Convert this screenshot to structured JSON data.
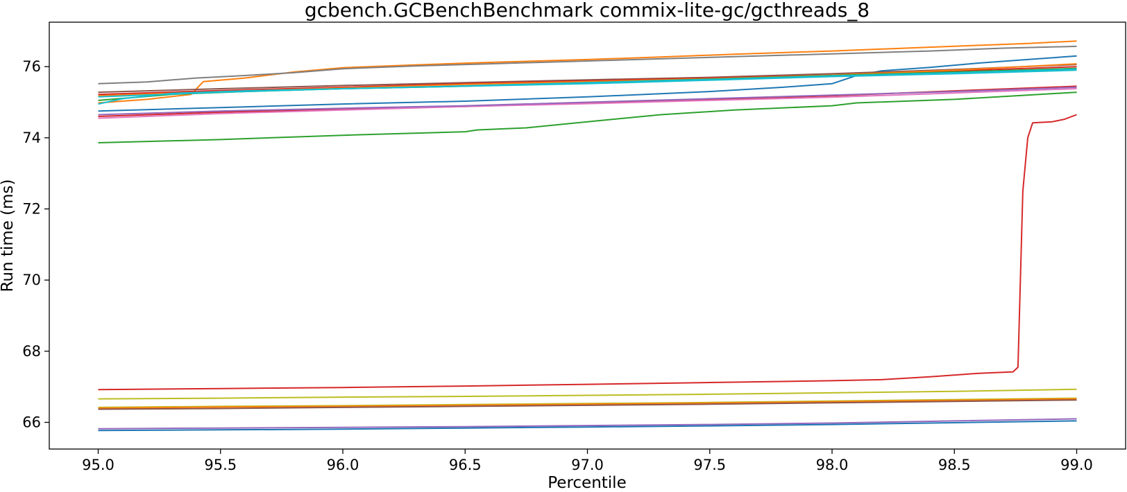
{
  "chart_data": {
    "type": "line",
    "title": "gcbench.GCBenchBenchmark commix-lite-gc/gcthreads_8",
    "xlabel": "Percentile",
    "ylabel": "Run time (ms)",
    "xlim": [
      94.8,
      99.2
    ],
    "ylim": [
      65.25,
      77.25
    ],
    "xticks": [
      95.0,
      95.5,
      96.0,
      96.5,
      97.0,
      97.5,
      98.0,
      98.5,
      99.0
    ],
    "yticks": [
      66,
      68,
      70,
      72,
      74,
      76
    ],
    "legend": "none",
    "grid": false,
    "series": [
      {
        "color": "#ff7f0e",
        "points": [
          [
            95.0,
            74.98
          ],
          [
            95.2,
            75.08
          ],
          [
            95.38,
            75.22
          ],
          [
            95.43,
            75.58
          ],
          [
            95.6,
            75.68
          ],
          [
            95.8,
            75.85
          ],
          [
            96.0,
            75.97
          ],
          [
            96.3,
            76.05
          ],
          [
            96.6,
            76.12
          ],
          [
            97.0,
            76.2
          ],
          [
            97.3,
            76.27
          ],
          [
            97.6,
            76.35
          ],
          [
            98.0,
            76.44
          ],
          [
            98.3,
            76.52
          ],
          [
            98.6,
            76.6
          ],
          [
            98.8,
            76.65
          ],
          [
            99.0,
            76.72
          ]
        ]
      },
      {
        "color": "#7f7f7f",
        "points": [
          [
            95.0,
            75.52
          ],
          [
            95.2,
            75.57
          ],
          [
            95.4,
            75.68
          ],
          [
            95.6,
            75.75
          ],
          [
            95.8,
            75.83
          ],
          [
            96.0,
            75.94
          ],
          [
            96.3,
            76.02
          ],
          [
            96.6,
            76.08
          ],
          [
            97.0,
            76.16
          ],
          [
            97.3,
            76.22
          ],
          [
            97.6,
            76.28
          ],
          [
            98.0,
            76.36
          ],
          [
            98.4,
            76.44
          ],
          [
            98.7,
            76.52
          ],
          [
            99.0,
            76.57
          ]
        ]
      },
      {
        "color": "#1f77b4",
        "points": [
          [
            95.0,
            74.75
          ],
          [
            95.5,
            74.85
          ],
          [
            96.0,
            74.95
          ],
          [
            96.5,
            75.03
          ],
          [
            97.0,
            75.15
          ],
          [
            97.5,
            75.3
          ],
          [
            97.8,
            75.42
          ],
          [
            98.0,
            75.52
          ],
          [
            98.1,
            75.75
          ],
          [
            98.2,
            75.88
          ],
          [
            98.4,
            75.98
          ],
          [
            98.6,
            76.1
          ],
          [
            98.8,
            76.2
          ],
          [
            99.0,
            76.3
          ]
        ]
      },
      {
        "color": "#8c564b",
        "points": [
          [
            95.0,
            75.28
          ],
          [
            95.5,
            75.38
          ],
          [
            96.0,
            75.47
          ],
          [
            96.5,
            75.55
          ],
          [
            97.0,
            75.63
          ],
          [
            97.5,
            75.7
          ],
          [
            98.0,
            75.8
          ],
          [
            98.5,
            75.92
          ],
          [
            99.0,
            76.06
          ]
        ]
      },
      {
        "color": "#d62728",
        "points": [
          [
            95.0,
            75.22
          ],
          [
            95.5,
            75.33
          ],
          [
            96.0,
            75.42
          ],
          [
            96.5,
            75.52
          ],
          [
            97.0,
            75.6
          ],
          [
            97.5,
            75.68
          ],
          [
            98.0,
            75.76
          ],
          [
            98.5,
            75.88
          ],
          [
            99.0,
            76.0
          ]
        ]
      },
      {
        "color": "#ff7f0e",
        "points": [
          [
            95.0,
            75.18
          ],
          [
            95.5,
            75.3
          ],
          [
            96.0,
            75.4
          ],
          [
            96.5,
            75.5
          ],
          [
            97.0,
            75.58
          ],
          [
            97.5,
            75.66
          ],
          [
            98.0,
            75.76
          ],
          [
            98.5,
            75.9
          ],
          [
            99.0,
            76.08
          ]
        ]
      },
      {
        "color": "#2ca02c",
        "points": [
          [
            95.0,
            75.05
          ],
          [
            95.3,
            75.22
          ],
          [
            95.6,
            75.3
          ],
          [
            96.0,
            75.38
          ],
          [
            96.5,
            75.45
          ],
          [
            97.0,
            75.55
          ],
          [
            97.5,
            75.65
          ],
          [
            98.0,
            75.75
          ],
          [
            98.5,
            75.85
          ],
          [
            99.0,
            75.95
          ]
        ]
      },
      {
        "color": "#17becf",
        "points": [
          [
            95.0,
            74.95
          ],
          [
            95.1,
            75.1
          ],
          [
            95.3,
            75.25
          ],
          [
            95.6,
            75.32
          ],
          [
            96.0,
            75.38
          ],
          [
            96.5,
            75.45
          ],
          [
            97.0,
            75.52
          ],
          [
            97.5,
            75.62
          ],
          [
            98.0,
            75.72
          ],
          [
            98.5,
            75.8
          ],
          [
            99.0,
            75.9
          ]
        ]
      },
      {
        "color": "#17becf",
        "points": [
          [
            95.0,
            75.15
          ],
          [
            95.5,
            75.28
          ],
          [
            96.0,
            75.38
          ],
          [
            96.5,
            75.46
          ],
          [
            97.0,
            75.55
          ],
          [
            97.5,
            75.64
          ],
          [
            98.0,
            75.74
          ],
          [
            98.5,
            75.83
          ],
          [
            99.0,
            75.93
          ]
        ]
      },
      {
        "color": "#d62728",
        "points": [
          [
            95.0,
            74.6
          ],
          [
            95.5,
            74.72
          ],
          [
            96.0,
            74.8
          ],
          [
            96.5,
            74.88
          ],
          [
            97.0,
            74.98
          ],
          [
            97.5,
            75.08
          ],
          [
            98.0,
            75.18
          ],
          [
            98.5,
            75.32
          ],
          [
            99.0,
            75.45
          ]
        ]
      },
      {
        "color": "#e377c2",
        "points": [
          [
            95.0,
            74.55
          ],
          [
            95.5,
            74.68
          ],
          [
            96.0,
            74.78
          ],
          [
            96.5,
            74.88
          ],
          [
            97.0,
            74.96
          ],
          [
            97.5,
            75.05
          ],
          [
            98.0,
            75.14
          ],
          [
            98.5,
            75.26
          ],
          [
            99.0,
            75.38
          ]
        ]
      },
      {
        "color": "#9467bd",
        "points": [
          [
            95.0,
            74.65
          ],
          [
            95.5,
            74.75
          ],
          [
            96.0,
            74.83
          ],
          [
            96.5,
            74.9
          ],
          [
            97.0,
            75.0
          ],
          [
            97.5,
            75.1
          ],
          [
            98.0,
            75.2
          ],
          [
            98.5,
            75.3
          ],
          [
            99.0,
            75.42
          ]
        ]
      },
      {
        "color": "#2ca02c",
        "points": [
          [
            95.0,
            73.86
          ],
          [
            95.5,
            73.95
          ],
          [
            96.0,
            74.07
          ],
          [
            96.5,
            74.17
          ],
          [
            96.55,
            74.22
          ],
          [
            96.75,
            74.28
          ],
          [
            97.0,
            74.45
          ],
          [
            97.3,
            74.65
          ],
          [
            97.6,
            74.78
          ],
          [
            98.0,
            74.9
          ],
          [
            98.1,
            74.98
          ],
          [
            98.5,
            75.08
          ],
          [
            98.8,
            75.2
          ],
          [
            99.0,
            75.28
          ]
        ]
      },
      {
        "color": "#d62728",
        "points": [
          [
            95.0,
            66.92
          ],
          [
            95.5,
            66.95
          ],
          [
            96.0,
            66.98
          ],
          [
            96.5,
            67.02
          ],
          [
            97.0,
            67.07
          ],
          [
            97.5,
            67.12
          ],
          [
            98.0,
            67.17
          ],
          [
            98.2,
            67.2
          ],
          [
            98.4,
            67.28
          ],
          [
            98.6,
            67.38
          ],
          [
            98.74,
            67.42
          ],
          [
            98.76,
            67.55
          ],
          [
            98.78,
            72.5
          ],
          [
            98.8,
            74.0
          ],
          [
            98.82,
            74.42
          ],
          [
            98.9,
            74.45
          ],
          [
            98.95,
            74.52
          ],
          [
            99.0,
            74.65
          ]
        ]
      },
      {
        "color": "#bcbd22",
        "points": [
          [
            95.0,
            66.66
          ],
          [
            95.5,
            66.68
          ],
          [
            96.0,
            66.71
          ],
          [
            96.5,
            66.73
          ],
          [
            97.0,
            66.76
          ],
          [
            97.5,
            66.79
          ],
          [
            98.0,
            66.83
          ],
          [
            98.5,
            66.87
          ],
          [
            99.0,
            66.93
          ]
        ]
      },
      {
        "color": "#bcbd22",
        "points": [
          [
            95.0,
            66.42
          ],
          [
            95.5,
            66.45
          ],
          [
            96.0,
            66.47
          ],
          [
            96.5,
            66.5
          ],
          [
            97.0,
            66.53
          ],
          [
            97.5,
            66.56
          ],
          [
            98.0,
            66.6
          ],
          [
            98.5,
            66.64
          ],
          [
            99.0,
            66.68
          ]
        ]
      },
      {
        "color": "#ff7f0e",
        "points": [
          [
            95.0,
            66.4
          ],
          [
            95.5,
            66.43
          ],
          [
            96.0,
            66.45
          ],
          [
            96.5,
            66.48
          ],
          [
            97.0,
            66.51
          ],
          [
            97.5,
            66.54
          ],
          [
            98.0,
            66.58
          ],
          [
            98.5,
            66.62
          ],
          [
            99.0,
            66.66
          ]
        ]
      },
      {
        "color": "#8c564b",
        "points": [
          [
            95.0,
            66.37
          ],
          [
            95.5,
            66.39
          ],
          [
            96.0,
            66.42
          ],
          [
            96.5,
            66.45
          ],
          [
            97.0,
            66.48
          ],
          [
            97.5,
            66.51
          ],
          [
            98.0,
            66.55
          ],
          [
            98.5,
            66.59
          ],
          [
            99.0,
            66.63
          ]
        ]
      },
      {
        "color": "#9467bd",
        "points": [
          [
            95.0,
            65.82
          ],
          [
            95.5,
            65.84
          ],
          [
            96.0,
            65.86
          ],
          [
            96.5,
            65.88
          ],
          [
            97.0,
            65.91
          ],
          [
            97.5,
            65.94
          ],
          [
            98.0,
            65.98
          ],
          [
            98.5,
            66.04
          ],
          [
            99.0,
            66.1
          ]
        ]
      },
      {
        "color": "#1f77b4",
        "points": [
          [
            95.0,
            65.77
          ],
          [
            95.5,
            65.79
          ],
          [
            96.0,
            65.81
          ],
          [
            96.5,
            65.84
          ],
          [
            97.0,
            65.87
          ],
          [
            97.5,
            65.9
          ],
          [
            98.0,
            65.94
          ],
          [
            98.5,
            65.99
          ],
          [
            99.0,
            66.04
          ]
        ]
      }
    ]
  }
}
